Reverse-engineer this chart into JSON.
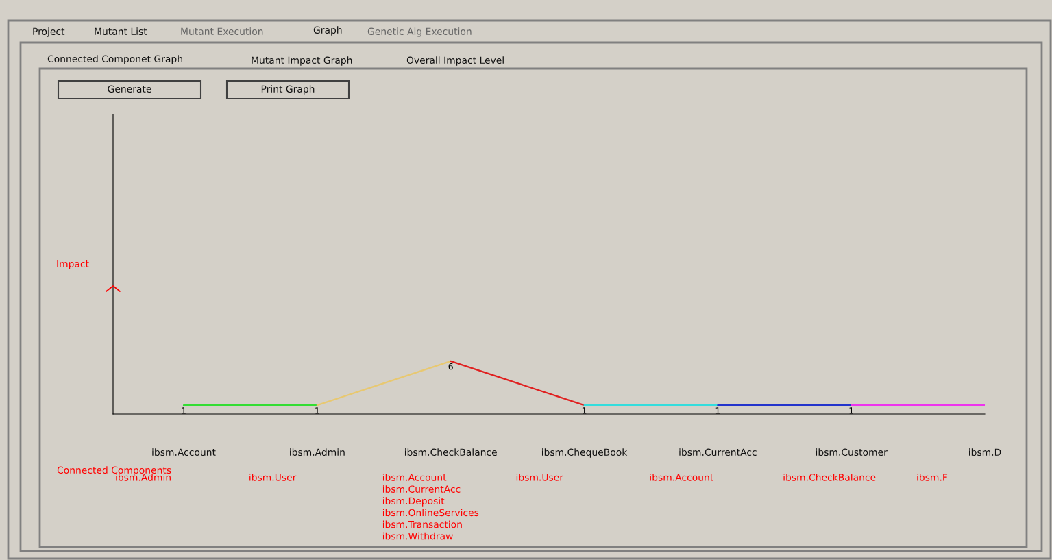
{
  "chart_data": {
    "type": "line",
    "categories": [
      "ibsm.Account",
      "ibsm.Admin",
      "ibsm.CheckBalance",
      "ibsm.ChequeBook",
      "ibsm.CurrentAcc",
      "ibsm.Customer",
      "ibsm.D"
    ],
    "series": [
      {
        "color": "#33dd33",
        "values": [
          1,
          1,
          null,
          null,
          null,
          null,
          null
        ],
        "value_labels": [
          "1",
          "1",
          null,
          null,
          null,
          null,
          null
        ]
      },
      {
        "color": "#e8c870",
        "values": [
          null,
          1,
          6,
          null,
          null,
          null,
          null
        ],
        "value_labels": [
          null,
          null,
          "6",
          null,
          null,
          null,
          null
        ]
      },
      {
        "color": "#e02020",
        "values": [
          null,
          null,
          6,
          1,
          null,
          null,
          null
        ],
        "value_labels": [
          null,
          null,
          null,
          "1",
          null,
          null,
          null
        ]
      },
      {
        "color": "#33dddd",
        "values": [
          null,
          null,
          null,
          1,
          1,
          null,
          null
        ],
        "value_labels": [
          null,
          null,
          null,
          null,
          "1",
          null,
          null
        ]
      },
      {
        "color": "#2233cc",
        "values": [
          null,
          null,
          null,
          null,
          1,
          1,
          null
        ],
        "value_labels": [
          null,
          null,
          null,
          null,
          null,
          "1",
          null
        ]
      },
      {
        "color": "#ee33ee",
        "values": [
          null,
          null,
          null,
          null,
          null,
          1,
          1
        ],
        "value_labels": [
          null,
          null,
          null,
          null,
          null,
          null,
          null
        ]
      }
    ],
    "ylim": [
      0,
      34
    ],
    "ylabel": "Impact",
    "legend": false,
    "annotations": [
      "Project",
      "Mutant List",
      "Mutant Execution",
      "Graph",
      "Genetic Alg Execution",
      "Connected Componet Graph",
      "Mutant Impact Graph",
      "Overall Impact Level",
      "Generate",
      "Print Graph",
      "Connected Components",
      "ibsm.Admin",
      "ibsm.User",
      "ibsm.Account\nibsm.CurrentAcc\nibsm.Deposit\nibsm.OnlineServices\nibsm.Transaction\nibsm.Withdraw",
      "ibsm.User",
      "ibsm.Account",
      "ibsm.CheckBalance",
      "ibsm.F"
    ]
  }
}
